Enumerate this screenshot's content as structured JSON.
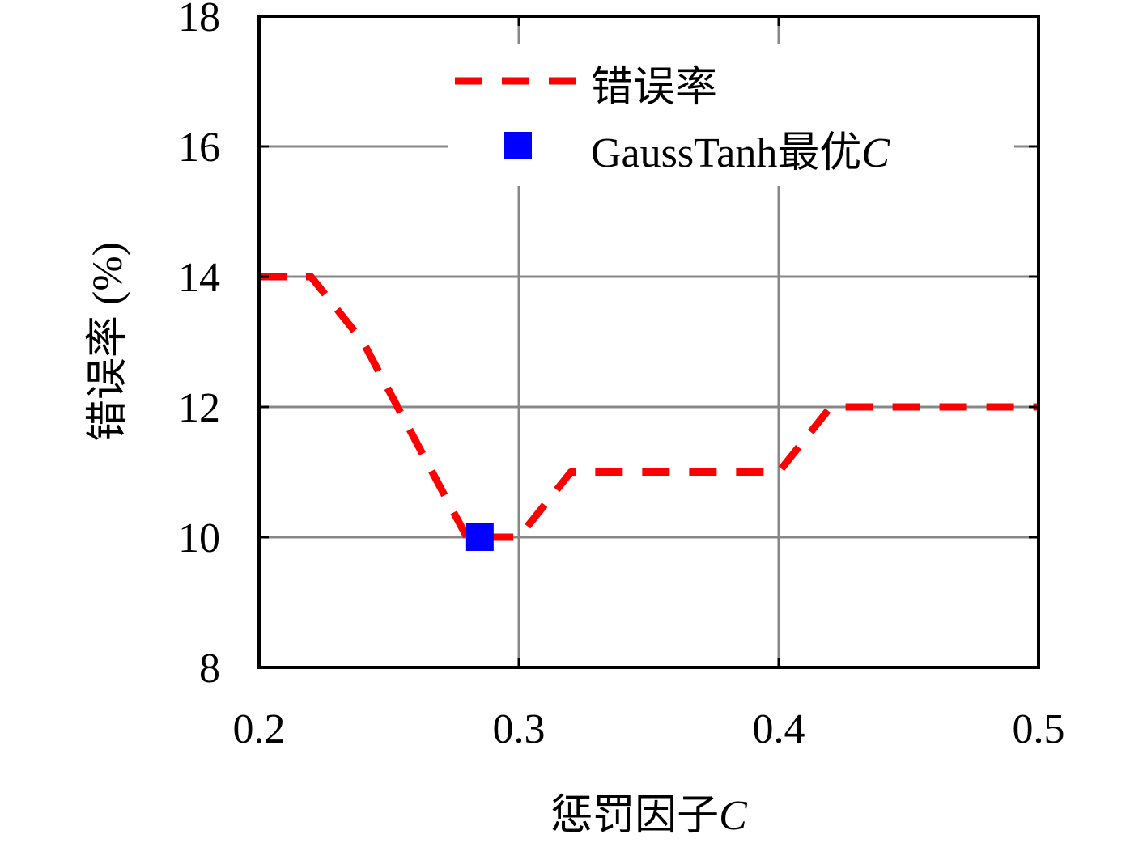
{
  "chart_data": {
    "type": "line",
    "xlabel": "惩罚因子",
    "xlabel_var": "C",
    "ylabel": "错误率 (%)",
    "xlim": [
      0.2,
      0.5
    ],
    "ylim": [
      8,
      18
    ],
    "x_ticks": [
      "0.2",
      "0.3",
      "0.4",
      "0.5"
    ],
    "y_ticks": [
      "8",
      "10",
      "12",
      "14",
      "16",
      "18"
    ],
    "grid": true,
    "legend_position": "top-right",
    "series": [
      {
        "name": "错误率",
        "style": "dashed",
        "color": "#ff0000",
        "x": [
          0.2,
          0.22,
          0.24,
          0.26,
          0.28,
          0.3,
          0.32,
          0.34,
          0.36,
          0.38,
          0.4,
          0.42,
          0.44,
          0.46,
          0.48,
          0.5
        ],
        "y": [
          14,
          14,
          13,
          11.5,
          10,
          10,
          11,
          11,
          11,
          11,
          11,
          12,
          12,
          12,
          12,
          12
        ]
      },
      {
        "name": "GaussTanh最优",
        "name_var": "C",
        "style": "marker-square",
        "color": "#0000ff",
        "x": [
          0.285
        ],
        "y": [
          10
        ]
      }
    ]
  }
}
